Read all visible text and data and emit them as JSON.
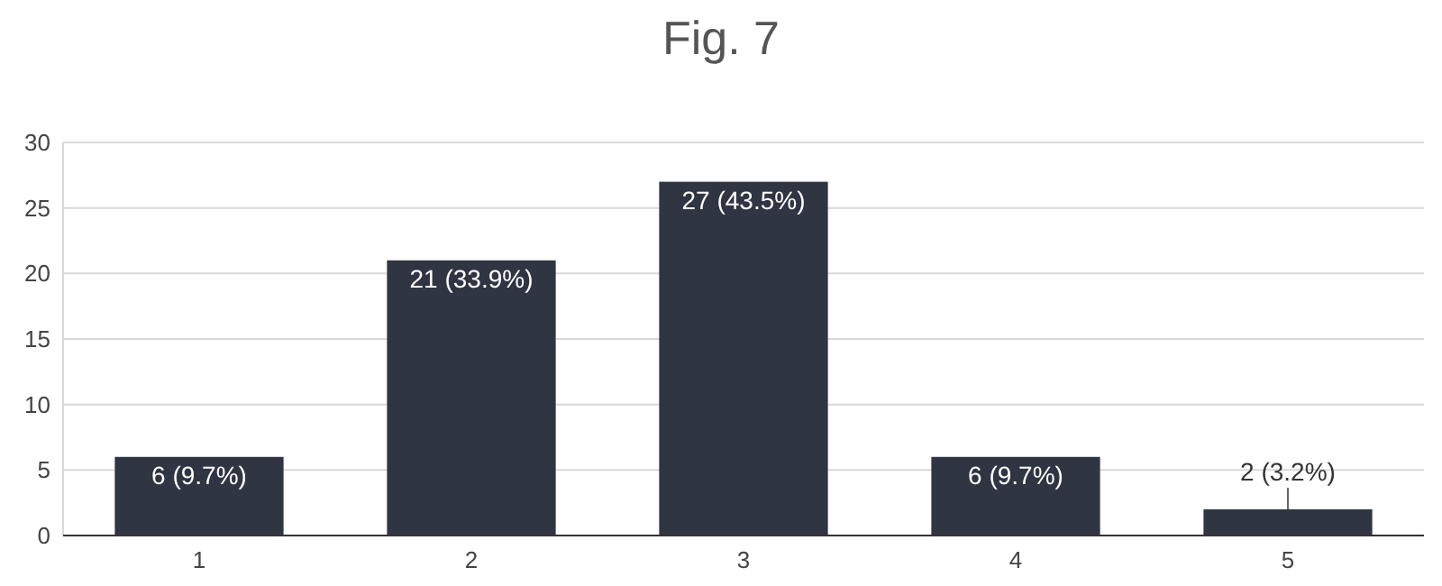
{
  "chart_data": {
    "type": "bar",
    "title": "Fig. 7",
    "categories": [
      "1",
      "2",
      "3",
      "4",
      "5"
    ],
    "values": [
      6,
      21,
      27,
      6,
      2
    ],
    "value_labels": [
      "6 (9.7%)",
      "21 (33.9%)",
      "27 (43.5%)",
      "6 (9.7%)",
      "2 (3.2%)"
    ],
    "color": "#2f3542",
    "ylim": [
      0,
      30
    ],
    "yticks": [
      0,
      5,
      10,
      15,
      20,
      25,
      30
    ],
    "grid": "y"
  }
}
